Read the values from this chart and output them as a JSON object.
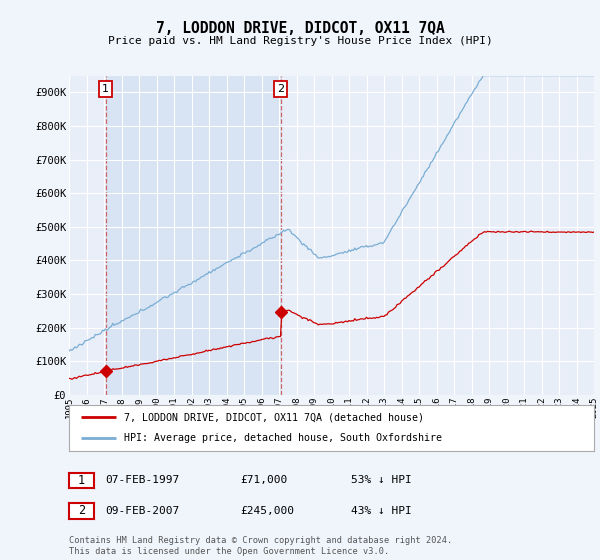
{
  "title": "7, LODDON DRIVE, DIDCOT, OX11 7QA",
  "subtitle": "Price paid vs. HM Land Registry's House Price Index (HPI)",
  "background_color": "#f0f4fb",
  "plot_bg_color": "#e8eef8",
  "highlight_color": "#d8e4f4",
  "ylim": [
    0,
    950000
  ],
  "yticks": [
    0,
    100000,
    200000,
    300000,
    400000,
    500000,
    600000,
    700000,
    800000,
    900000
  ],
  "ytick_labels": [
    "£0",
    "£100K",
    "£200K",
    "£300K",
    "£400K",
    "£500K",
    "£600K",
    "£700K",
    "£800K",
    "£900K"
  ],
  "sale1_date": 1997.1,
  "sale1_price": 71000,
  "sale1_label": "1",
  "sale2_date": 2007.1,
  "sale2_price": 245000,
  "sale2_label": "2",
  "sale1_info": "07-FEB-1997",
  "sale1_paid": "£71,000",
  "sale1_hpi": "53% ↓ HPI",
  "sale2_info": "09-FEB-2007",
  "sale2_paid": "£245,000",
  "sale2_hpi": "43% ↓ HPI",
  "legend_label1": "7, LODDON DRIVE, DIDCOT, OX11 7QA (detached house)",
  "legend_label2": "HPI: Average price, detached house, South Oxfordshire",
  "footer": "Contains HM Land Registry data © Crown copyright and database right 2024.\nThis data is licensed under the Open Government Licence v3.0.",
  "red_color": "#cc0000",
  "blue_color": "#7aadd4",
  "dashed_color": "#cc6666",
  "grid_color": "#ffffff"
}
